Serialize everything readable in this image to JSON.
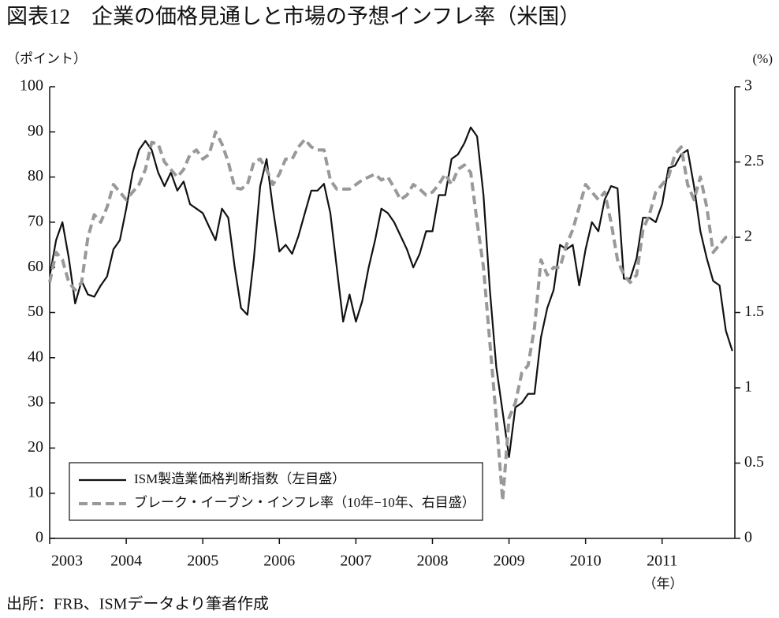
{
  "chart_data": {
    "type": "line",
    "title": "図表12　企業の価格見通しと市場の予想インフレ率（米国）",
    "y_label": "（ポイント）",
    "y2_label": "(%)",
    "x_label": "（年）",
    "source": "出所：FRB、ISMデータより筆者作成",
    "x": [
      2003,
      2003.083,
      2003.167,
      2003.25,
      2003.333,
      2003.417,
      2003.5,
      2003.583,
      2003.667,
      2003.75,
      2003.833,
      2003.917,
      2004,
      2004.083,
      2004.167,
      2004.25,
      2004.333,
      2004.417,
      2004.5,
      2004.583,
      2004.667,
      2004.75,
      2004.833,
      2004.917,
      2005,
      2005.083,
      2005.167,
      2005.25,
      2005.333,
      2005.417,
      2005.5,
      2005.583,
      2005.667,
      2005.75,
      2005.833,
      2005.917,
      2006,
      2006.083,
      2006.167,
      2006.25,
      2006.333,
      2006.417,
      2006.5,
      2006.583,
      2006.667,
      2006.75,
      2006.833,
      2006.917,
      2007,
      2007.083,
      2007.167,
      2007.25,
      2007.333,
      2007.417,
      2007.5,
      2007.583,
      2007.667,
      2007.75,
      2007.833,
      2007.917,
      2008,
      2008.083,
      2008.167,
      2008.25,
      2008.333,
      2008.417,
      2008.5,
      2008.583,
      2008.667,
      2008.75,
      2008.833,
      2008.917,
      2009,
      2009.083,
      2009.167,
      2009.25,
      2009.333,
      2009.417,
      2009.5,
      2009.583,
      2009.667,
      2009.75,
      2009.833,
      2009.917,
      2010,
      2010.083,
      2010.167,
      2010.25,
      2010.333,
      2010.417,
      2010.5,
      2010.583,
      2010.667,
      2010.75,
      2010.833,
      2010.917,
      2011,
      2011.083,
      2011.167,
      2011.25,
      2011.333,
      2011.417,
      2011.5,
      2011.583,
      2011.667,
      2011.75,
      2011.833,
      2011.917
    ],
    "series": [
      {
        "name": "ISM製造業価格判断指数（左目盛）",
        "color": "#111111",
        "dash": false,
        "values": [
          58,
          66,
          70,
          62,
          52,
          57,
          54,
          53.5,
          56,
          58,
          64,
          66,
          73,
          81,
          86,
          88,
          86,
          81,
          78,
          81,
          77,
          79,
          74,
          73,
          72,
          69,
          66,
          73,
          71,
          60,
          51,
          49.5,
          62,
          78,
          84,
          73,
          63.5,
          65,
          63,
          67,
          72,
          77,
          77,
          78.5,
          72,
          60,
          48,
          54,
          48,
          52.5,
          60,
          66,
          73,
          72,
          70,
          67,
          64,
          60,
          63,
          68,
          68,
          76,
          76,
          84,
          85,
          87.5,
          91,
          89,
          76,
          55,
          38,
          28,
          18,
          29,
          30,
          32,
          32,
          44.5,
          51,
          55,
          65,
          64,
          65,
          56,
          64,
          70,
          68,
          75,
          78,
          77.5,
          57.5,
          57.5,
          62,
          71,
          71,
          70,
          74,
          82,
          82.5,
          85,
          86,
          78,
          68,
          62,
          57,
          56,
          46,
          41.5
        ]
      },
      {
        "name": "ブレーク・イーブン・インフレ率（10年−10年、右目盛）",
        "color": "#999999",
        "dash": true,
        "axis": "y2",
        "values": [
          1.7,
          1.9,
          1.85,
          1.7,
          1.65,
          1.7,
          2.0,
          2.15,
          2.1,
          2.2,
          2.35,
          2.3,
          2.25,
          2.3,
          2.35,
          2.45,
          2.63,
          2.62,
          2.5,
          2.45,
          2.4,
          2.45,
          2.55,
          2.58,
          2.52,
          2.55,
          2.7,
          2.62,
          2.5,
          2.33,
          2.32,
          2.35,
          2.5,
          2.52,
          2.45,
          2.35,
          2.42,
          2.52,
          2.52,
          2.6,
          2.65,
          2.6,
          2.58,
          2.58,
          2.38,
          2.32,
          2.32,
          2.32,
          2.35,
          2.38,
          2.4,
          2.42,
          2.38,
          2.4,
          2.33,
          2.25,
          2.28,
          2.35,
          2.32,
          2.28,
          2.3,
          2.35,
          2.42,
          2.35,
          2.45,
          2.48,
          2.43,
          2.1,
          1.8,
          1.3,
          0.8,
          0.25,
          0.8,
          0.9,
          1.1,
          1.15,
          1.4,
          1.85,
          1.75,
          1.8,
          1.8,
          1.95,
          2.05,
          2.2,
          2.35,
          2.3,
          2.25,
          2.3,
          2.1,
          1.85,
          1.75,
          1.7,
          1.75,
          2.05,
          2.15,
          2.3,
          2.35,
          2.4,
          2.55,
          2.6,
          2.35,
          2.25,
          2.4,
          2.2,
          1.9,
          1.95,
          2.0,
          2.0
        ]
      }
    ],
    "xlim": [
      2003,
      2011.95
    ],
    "xticks": [
      2003,
      2004,
      2005,
      2006,
      2007,
      2008,
      2009,
      2010,
      2011
    ],
    "ylim": [
      0,
      100
    ],
    "yticks": [
      0,
      10,
      20,
      30,
      40,
      50,
      60,
      70,
      80,
      90,
      100
    ],
    "y2lim": [
      0,
      3
    ],
    "y2ticks": [
      0,
      0.5,
      1,
      1.5,
      2,
      2.5,
      3
    ],
    "legend": "lower left"
  }
}
